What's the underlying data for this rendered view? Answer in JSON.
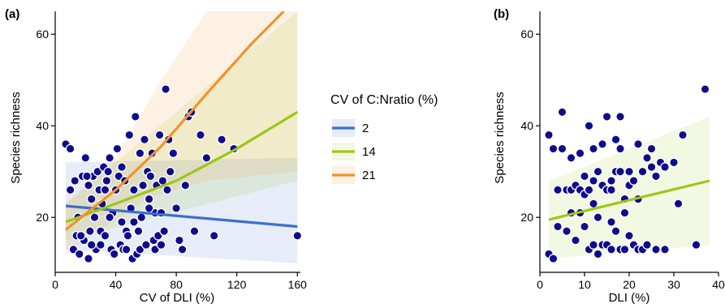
{
  "chart_data": [
    {
      "panel_label": "(a)",
      "type": "scatter",
      "xlabel": "CV of DLI (%)",
      "ylabel": "Species richness",
      "xlim": [
        0,
        162
      ],
      "ylim": [
        8,
        65
      ],
      "xticks": [
        0,
        40,
        80,
        120,
        160
      ],
      "yticks": [
        20,
        40,
        60
      ],
      "grid": false,
      "legend_position": "right",
      "legend_title": "CV of C:Nratio (%)",
      "points": [
        [
          7,
          36
        ],
        [
          10,
          26
        ],
        [
          12,
          13
        ],
        [
          14,
          16
        ],
        [
          16,
          12
        ],
        [
          18,
          29
        ],
        [
          19,
          15
        ],
        [
          20,
          33
        ],
        [
          22,
          27
        ],
        [
          22,
          11
        ],
        [
          23,
          17
        ],
        [
          24,
          24
        ],
        [
          25,
          29
        ],
        [
          26,
          20
        ],
        [
          27,
          13
        ],
        [
          28,
          30
        ],
        [
          29,
          26
        ],
        [
          30,
          14
        ],
        [
          31,
          23
        ],
        [
          32,
          31
        ],
        [
          33,
          26
        ],
        [
          34,
          28
        ],
        [
          35,
          30
        ],
        [
          36,
          33
        ],
        [
          37,
          13
        ],
        [
          38,
          21
        ],
        [
          40,
          26
        ],
        [
          41,
          35
        ],
        [
          42,
          29
        ],
        [
          43,
          14
        ],
        [
          44,
          31
        ],
        [
          45,
          13
        ],
        [
          46,
          28
        ],
        [
          47,
          17
        ],
        [
          48,
          16
        ],
        [
          49,
          38
        ],
        [
          50,
          22
        ],
        [
          51,
          11
        ],
        [
          52,
          26
        ],
        [
          53,
          42
        ],
        [
          54,
          12
        ],
        [
          55,
          17
        ],
        [
          56,
          13
        ],
        [
          57,
          20
        ],
        [
          58,
          27
        ],
        [
          59,
          37
        ],
        [
          60,
          14
        ],
        [
          61,
          30
        ],
        [
          62,
          24
        ],
        [
          63,
          29
        ],
        [
          64,
          34
        ],
        [
          65,
          15
        ],
        [
          66,
          21
        ],
        [
          67,
          27
        ],
        [
          68,
          16
        ],
        [
          69,
          38
        ],
        [
          70,
          21
        ],
        [
          71,
          28
        ],
        [
          72,
          17
        ],
        [
          73,
          48
        ],
        [
          74,
          26
        ],
        [
          75,
          37
        ],
        [
          76,
          30
        ],
        [
          78,
          34
        ],
        [
          80,
          22
        ],
        [
          82,
          15
        ],
        [
          84,
          13
        ],
        [
          86,
          27
        ],
        [
          88,
          42
        ],
        [
          90,
          43
        ],
        [
          92,
          17
        ],
        [
          96,
          38
        ],
        [
          100,
          33
        ],
        [
          105,
          16
        ],
        [
          110,
          37
        ],
        [
          118,
          35
        ],
        [
          160,
          16
        ],
        [
          10,
          35
        ],
        [
          13,
          28
        ],
        [
          15,
          20
        ],
        [
          17,
          16
        ],
        [
          21,
          29
        ],
        [
          24,
          14
        ],
        [
          30,
          17
        ],
        [
          33,
          16
        ],
        [
          36,
          20
        ],
        [
          39,
          12
        ],
        [
          44,
          19
        ],
        [
          47,
          13
        ],
        [
          52,
          19
        ],
        [
          56,
          34
        ],
        [
          62,
          22
        ],
        [
          66,
          13
        ],
        [
          70,
          14
        ]
      ],
      "series": [
        {
          "name": "2",
          "color": "#3c6fcc",
          "fit": [
            [
              7,
              22.5
            ],
            [
              160,
              18
            ]
          ],
          "ci_low": [
            [
              7,
              13
            ],
            [
              160,
              10
            ]
          ],
          "ci_high": [
            [
              7,
              32
            ],
            [
              160,
              33
            ]
          ]
        },
        {
          "name": "14",
          "color": "#9cc617",
          "fit": [
            [
              7,
              19
            ],
            [
              40,
              23
            ],
            [
              80,
              28
            ],
            [
              120,
              35
            ],
            [
              160,
              43
            ]
          ],
          "ci_low": [
            [
              7,
              15
            ],
            [
              160,
              28
            ]
          ],
          "ci_high": [
            [
              7,
              23
            ],
            [
              160,
              65
            ]
          ]
        },
        {
          "name": "21",
          "color": "#f0932c",
          "fit": [
            [
              7,
              17.3
            ],
            [
              40,
              26
            ],
            [
              70,
              35.5
            ],
            [
              100,
              47
            ],
            [
              130,
              58
            ],
            [
              151,
              65
            ]
          ],
          "ci_low": [
            [
              7,
              12
            ],
            [
              60,
              24
            ],
            [
              100,
              28
            ],
            [
              160,
              30
            ]
          ],
          "ci_high": [
            [
              7,
              23
            ],
            [
              40,
              33
            ],
            [
              70,
              50
            ],
            [
              100,
              65
            ]
          ]
        }
      ]
    },
    {
      "panel_label": "(b)",
      "type": "scatter",
      "xlabel": "DLI (%)",
      "ylabel": "Species richness",
      "xlim": [
        0,
        40
      ],
      "ylim": [
        8,
        65
      ],
      "xticks": [
        0,
        10,
        20,
        30,
        40
      ],
      "yticks": [
        20,
        40,
        60
      ],
      "grid": false,
      "points": [
        [
          2,
          12
        ],
        [
          2,
          38
        ],
        [
          3,
          35
        ],
        [
          4,
          18
        ],
        [
          4,
          26
        ],
        [
          5,
          43
        ],
        [
          5,
          35
        ],
        [
          6,
          26
        ],
        [
          6,
          17
        ],
        [
          7,
          21
        ],
        [
          7,
          26
        ],
        [
          7,
          33
        ],
        [
          8,
          27
        ],
        [
          8,
          15
        ],
        [
          9,
          26
        ],
        [
          9,
          21
        ],
        [
          10,
          29
        ],
        [
          10,
          18
        ],
        [
          10,
          25
        ],
        [
          11,
          26
        ],
        [
          11,
          13
        ],
        [
          11,
          40
        ],
        [
          12,
          28
        ],
        [
          12,
          23
        ],
        [
          12,
          14
        ],
        [
          13,
          30
        ],
        [
          13,
          12
        ],
        [
          13,
          20
        ],
        [
          14,
          27
        ],
        [
          14,
          14
        ],
        [
          14,
          36
        ],
        [
          15,
          26
        ],
        [
          15,
          42
        ],
        [
          15,
          14
        ],
        [
          16,
          19
        ],
        [
          16,
          26
        ],
        [
          16,
          13
        ],
        [
          17,
          30
        ],
        [
          17,
          37
        ],
        [
          17,
          17
        ],
        [
          18,
          30
        ],
        [
          18,
          13
        ],
        [
          18,
          35
        ],
        [
          18,
          42
        ],
        [
          19,
          24
        ],
        [
          19,
          13
        ],
        [
          20,
          27
        ],
        [
          20,
          16
        ],
        [
          20,
          30
        ],
        [
          21,
          14
        ],
        [
          21,
          28
        ],
        [
          22,
          13
        ],
        [
          22,
          36
        ],
        [
          23,
          30
        ],
        [
          23,
          13
        ],
        [
          24,
          33
        ],
        [
          24,
          14
        ],
        [
          25,
          35
        ],
        [
          25,
          31
        ],
        [
          26,
          13
        ],
        [
          27,
          32
        ],
        [
          28,
          31
        ],
        [
          28,
          13
        ],
        [
          30,
          32
        ],
        [
          31,
          23
        ],
        [
          32,
          38
        ],
        [
          35,
          14
        ],
        [
          37,
          48
        ],
        [
          3,
          11
        ],
        [
          9,
          34
        ],
        [
          12,
          35
        ],
        [
          16,
          28
        ],
        [
          19,
          21
        ],
        [
          22,
          24
        ],
        [
          26,
          29
        ]
      ],
      "series": [
        {
          "name": "",
          "color": "#9cc617",
          "fit": [
            [
              2,
              19.5
            ],
            [
              38,
              28
            ]
          ],
          "ci_low": [
            [
              2,
              11
            ],
            [
              38,
              14
            ]
          ],
          "ci_high": [
            [
              2,
              28
            ],
            [
              38,
              42
            ]
          ]
        }
      ]
    }
  ]
}
